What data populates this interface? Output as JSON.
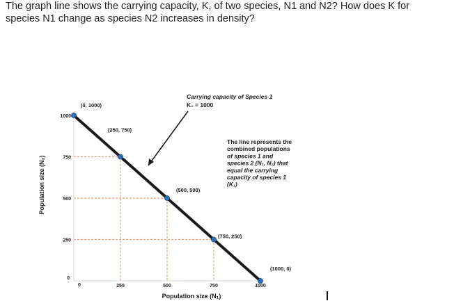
{
  "question": {
    "line1": "The graph line shows the carrying capacity, K, of two species, N1 and N2? How does K for",
    "line2": "species N1 change as species N2 increases in density?"
  },
  "chart_data": {
    "type": "line",
    "xlabel": "Population size (N₁)",
    "ylabel": "Population size (N₂)",
    "xlim": [
      0,
      1000
    ],
    "ylim": [
      0,
      1000
    ],
    "x_ticks": [
      {
        "value": 0,
        "label": "0"
      },
      {
        "value": 250,
        "label": "250"
      },
      {
        "value": 500,
        "label": "500"
      },
      {
        "value": 750,
        "label": "750"
      },
      {
        "value": 1000,
        "label": "1000"
      }
    ],
    "y_ticks": [
      {
        "value": 0,
        "label": "0"
      },
      {
        "value": 250,
        "label": "250"
      },
      {
        "value": 500,
        "label": "500"
      },
      {
        "value": 750,
        "label": "750"
      },
      {
        "value": 1000,
        "label": "1000"
      }
    ],
    "line": {
      "x": [
        0,
        1000
      ],
      "y": [
        1000,
        0
      ],
      "color": "#1a1a1a"
    },
    "points": [
      {
        "x": 0,
        "y": 1000,
        "label": "(0, 1000)",
        "color": "#2d6fb7"
      },
      {
        "x": 250,
        "y": 750,
        "label": "(250, 750)",
        "color": "#2d6fb7"
      },
      {
        "x": 500,
        "y": 500,
        "label": "(500, 500)",
        "color": "#2d6fb7"
      },
      {
        "x": 750,
        "y": 250,
        "label": "(750, 250)",
        "color": "#2d6fb7"
      },
      {
        "x": 1000,
        "y": 0,
        "label": "(1000, 0)",
        "color": "#2d6fb7"
      }
    ],
    "guide_color": "#e8a07a",
    "annotations": {
      "carrying_capacity": {
        "line1": "Carrying capacity of Species 1",
        "line2": "K₁ = 1000"
      },
      "combined": [
        "The line represents the",
        "combined populations",
        "of species 1 and",
        "species 2 (N₁, N₂) that",
        "equal the carrying",
        "capacity of species 1",
        "(K₁)"
      ]
    }
  }
}
